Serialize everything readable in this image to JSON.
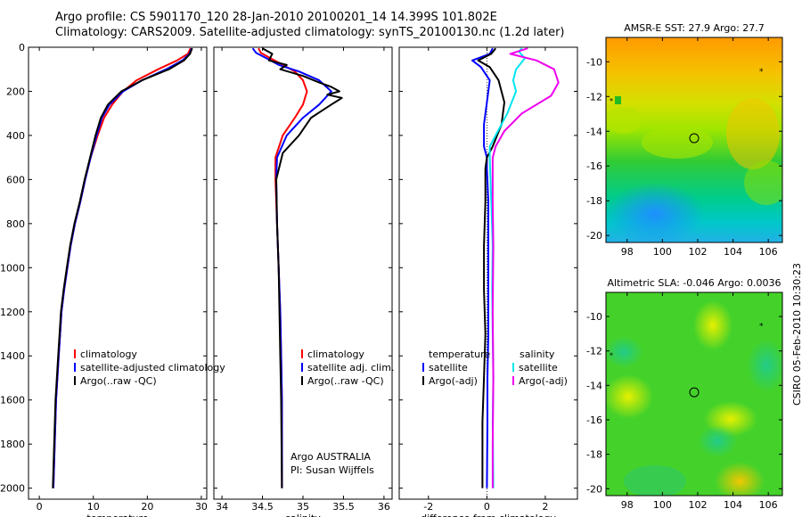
{
  "header": {
    "line1": "Argo profile: CS 5901170_120 28-Jan-2010 20100201_14 14.399S 101.802E",
    "line2": "Climatology: CARS2009. Satellite-adjusted climatology: synTS_20100130.nc (1.2d later)"
  },
  "credit": "CSIRO 05-Feb-2010 10:30:23",
  "colors": {
    "clim": "#ff0000",
    "sat": "#0000ff",
    "argo": "#000000",
    "sat_sal": "#00e5ee",
    "argo_sal": "#ee00ee"
  },
  "chart_data": [
    {
      "type": "line",
      "xlabel": "temperature",
      "ylabel": "",
      "xlim": [
        -2,
        31
      ],
      "ylim": [
        2050,
        0
      ],
      "xticks": [
        0,
        10,
        20,
        30
      ],
      "yticks": [
        0,
        200,
        400,
        600,
        800,
        1000,
        1200,
        1400,
        1600,
        1800,
        2000
      ],
      "legend": [
        "climatology",
        "satellite-adjusted climatology",
        "Argo(..raw -QC)"
      ],
      "series": [
        {
          "name": "climatology",
          "color": "#ff0000",
          "x": [
            28.0,
            27.5,
            25.5,
            22,
            18,
            15.5,
            13.5,
            12,
            10.8,
            9.5,
            8.5,
            7.6,
            6.6,
            5.8,
            5.2,
            4.6,
            4.1,
            3.6,
            3.1,
            2.6
          ],
          "y": [
            5,
            30,
            60,
            100,
            150,
            200,
            260,
            320,
            400,
            500,
            600,
            700,
            800,
            900,
            1000,
            1100,
            1200,
            1400,
            1600,
            2000
          ]
        },
        {
          "name": "satellite-adjusted climatology",
          "color": "#0000ff",
          "x": [
            28.2,
            27.8,
            26.5,
            23.5,
            19,
            15.5,
            13,
            11.6,
            10.6,
            9.5,
            8.5,
            7.6,
            6.6,
            5.8,
            5.2,
            4.6,
            4.1,
            3.6,
            3.1,
            2.6
          ],
          "y": [
            5,
            30,
            60,
            100,
            150,
            200,
            260,
            320,
            400,
            500,
            600,
            700,
            800,
            900,
            1000,
            1100,
            1200,
            1400,
            1600,
            2000
          ]
        },
        {
          "name": "Argo(..raw -QC)",
          "color": "#000000",
          "x": [
            28.3,
            27.9,
            26.8,
            24,
            19,
            15.2,
            12.7,
            11.4,
            10.4,
            9.4,
            8.4,
            7.5,
            6.5,
            5.7,
            5.1,
            4.5,
            4.0,
            3.5,
            3.0,
            2.5
          ],
          "y": [
            5,
            30,
            60,
            100,
            150,
            200,
            260,
            320,
            400,
            500,
            600,
            700,
            800,
            900,
            1000,
            1100,
            1200,
            1400,
            1600,
            2000
          ]
        }
      ]
    },
    {
      "type": "line",
      "xlabel": "salinity",
      "xlim": [
        33.9,
        36.1
      ],
      "ylim": [
        2050,
        0
      ],
      "xticks": [
        34,
        34.5,
        35,
        35.5,
        36
      ],
      "legend": [
        "climatology",
        "satellite adj. clim.",
        "Argo(..raw -QC)"
      ],
      "annotation": [
        "Argo AUSTRALIA",
        "PI: Susan Wijffels"
      ],
      "series": [
        {
          "name": "climatology",
          "color": "#ff0000",
          "x": [
            34.45,
            34.48,
            34.6,
            34.75,
            34.9,
            35.0,
            35.05,
            35.0,
            34.9,
            34.75,
            34.66,
            34.66,
            34.68,
            34.7,
            34.72,
            34.73,
            34.74,
            34.74
          ],
          "y": [
            5,
            25,
            50,
            80,
            110,
            150,
            200,
            260,
            320,
            400,
            500,
            600,
            800,
            1000,
            1200,
            1400,
            1600,
            2000
          ]
        },
        {
          "name": "satellite adj. clim.",
          "color": "#0000ff",
          "x": [
            34.38,
            34.42,
            34.55,
            34.7,
            34.95,
            35.2,
            35.35,
            35.2,
            35.0,
            34.8,
            34.68,
            34.67,
            34.68,
            34.7,
            34.72,
            34.73,
            34.74,
            34.74
          ],
          "y": [
            5,
            25,
            50,
            80,
            110,
            150,
            200,
            260,
            320,
            400,
            500,
            600,
            800,
            1000,
            1200,
            1400,
            1600,
            2000
          ]
        },
        {
          "name": "Argo(..raw -QC)",
          "color": "#000000",
          "x": [
            34.5,
            34.62,
            34.58,
            34.8,
            34.72,
            35.0,
            35.2,
            35.35,
            35.45,
            35.3,
            35.48,
            35.35,
            35.1,
            34.95,
            34.75,
            34.67,
            34.68,
            34.7,
            34.72,
            34.73,
            34.74
          ],
          "y": [
            5,
            30,
            60,
            80,
            100,
            130,
            160,
            180,
            200,
            215,
            230,
            260,
            320,
            400,
            480,
            600,
            800,
            1000,
            1400,
            1600,
            2000
          ]
        }
      ]
    },
    {
      "type": "line",
      "xlabel": "difference from climatology",
      "xlim": [
        -3.0,
        3.1
      ],
      "ylim": [
        2050,
        0
      ],
      "xticks": [
        -2,
        0,
        2
      ],
      "legend": {
        "temperature": [
          "satellite",
          "Argo(-adj)"
        ],
        "salinity": [
          "satellite",
          "Argo(-adj)"
        ]
      },
      "series": [
        {
          "name": "temperature satellite",
          "color": "#0000ff",
          "x": [
            0.2,
            0.1,
            -0.5,
            -0.2,
            0.1,
            0.0,
            -0.1,
            -0.1,
            0.0,
            0.0,
            0.05,
            0.05,
            0.05,
            0.05,
            0.02,
            0.02,
            0.0
          ],
          "y": [
            5,
            30,
            60,
            90,
            150,
            250,
            350,
            450,
            500,
            550,
            700,
            900,
            1100,
            1300,
            1500,
            1700,
            2000
          ]
        },
        {
          "name": "temperature Argo(-adj)",
          "color": "#000000",
          "x": [
            0.3,
            0.15,
            -0.3,
            0.1,
            0.4,
            0.6,
            0.5,
            0.2,
            0.0,
            -0.05,
            -0.05,
            -0.1,
            -0.1,
            -0.05,
            -0.1,
            -0.15,
            -0.15
          ],
          "y": [
            5,
            30,
            60,
            90,
            150,
            250,
            350,
            450,
            500,
            550,
            700,
            900,
            1100,
            1300,
            1500,
            1700,
            2000
          ]
        },
        {
          "name": "salinity satellite",
          "color": "#00e5ee",
          "x": [
            1.2,
            1.1,
            1.3,
            1.0,
            0.9,
            1.0,
            0.7,
            0.3,
            0.1,
            0.1,
            0.15,
            0.2,
            0.18,
            0.2,
            0.22,
            0.2,
            0.22
          ],
          "y": [
            5,
            20,
            50,
            100,
            150,
            200,
            300,
            400,
            450,
            500,
            700,
            900,
            1100,
            1300,
            1500,
            1700,
            2000
          ]
        },
        {
          "name": "salinity Argo(-adj)",
          "color": "#ee00ee",
          "x": [
            1.4,
            0.8,
            1.7,
            2.3,
            2.45,
            2.2,
            1.2,
            0.6,
            0.3,
            0.2,
            0.2,
            0.22,
            0.2,
            0.22,
            0.2,
            0.2
          ],
          "y": [
            5,
            30,
            60,
            100,
            160,
            220,
            300,
            380,
            450,
            500,
            700,
            900,
            1200,
            1500,
            1800,
            2000
          ]
        }
      ]
    },
    {
      "type": "heatmap",
      "title": "AMSR-E SST: 27.9 Argo: 27.7",
      "xlim": [
        96.8,
        106.8
      ],
      "ylim": [
        -20.4,
        -8.6
      ],
      "xticks": [
        98,
        100,
        102,
        104,
        106
      ],
      "yticks": [
        -10,
        -12,
        -14,
        -16,
        -18,
        -20
      ],
      "argo_position": [
        101.8,
        -14.4
      ]
    },
    {
      "type": "heatmap",
      "title": "Altimetric SLA: -0.046 Argo: 0.0036",
      "xlim": [
        96.8,
        106.8
      ],
      "ylim": [
        -20.4,
        -8.6
      ],
      "xticks": [
        98,
        100,
        102,
        104,
        106
      ],
      "yticks": [
        -10,
        -12,
        -14,
        -16,
        -18,
        -20
      ],
      "argo_position": [
        101.8,
        -14.4
      ]
    }
  ]
}
